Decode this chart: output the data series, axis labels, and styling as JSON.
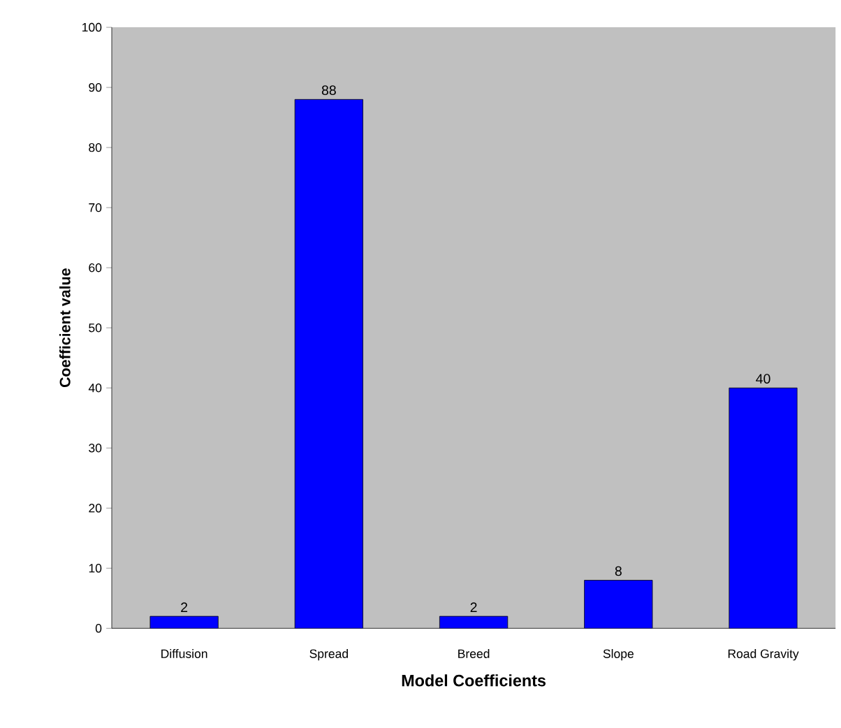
{
  "chart_data": {
    "type": "bar",
    "xlabel": "Model Coefficients",
    "ylabel": "Coefficient value",
    "categories": [
      "Diffusion",
      "Spread",
      "Breed",
      "Slope",
      "Road Gravity"
    ],
    "values": [
      2,
      88,
      2,
      8,
      40
    ],
    "color": "#0000ff",
    "ylim": [
      0,
      100
    ],
    "yticks": [
      0,
      10,
      20,
      30,
      40,
      50,
      60,
      70,
      80,
      90,
      100
    ],
    "data_labels": true
  }
}
